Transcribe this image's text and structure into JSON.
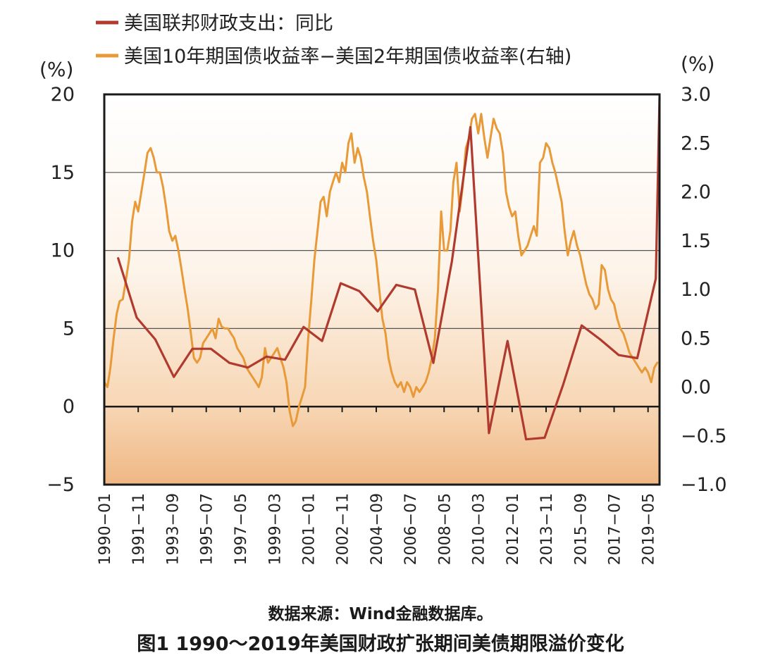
{
  "chart_data": {
    "type": "line",
    "title": "图1 1990～2019年美国财政扩张期间美债期限溢价变化",
    "source": "数据来源：Wind金融数据库。",
    "left_unit": "(%)",
    "right_unit": "(%)",
    "y_left": {
      "min": -5,
      "max": 20,
      "ticks": [
        "20",
        "15",
        "10",
        "5",
        "0",
        "−5"
      ],
      "tick_values": [
        20,
        15,
        10,
        5,
        0,
        -5
      ]
    },
    "y_right": {
      "min": -1.0,
      "max": 3.0,
      "ticks": [
        "3.0",
        "2.5",
        "2.0",
        "1.5",
        "1.0",
        "0.5",
        "0.0",
        "−0.5",
        "−1.0"
      ],
      "tick_values": [
        3.0,
        2.5,
        2.0,
        1.5,
        1.0,
        0.5,
        0.0,
        -0.5,
        -1.0
      ]
    },
    "x_range": [
      1990.0,
      2019.95
    ],
    "x_ticks": [
      "1990−01",
      "1991−11",
      "1993−09",
      "1995−07",
      "1997−05",
      "1999−03",
      "2001−01",
      "2002−11",
      "2004−09",
      "2006−07",
      "2008−05",
      "2010−03",
      "2012−01",
      "2013−11",
      "2015−09",
      "2017−07",
      "2019−05"
    ],
    "x_tick_values": [
      1990.0,
      1991.83,
      1993.67,
      1995.5,
      1997.33,
      1999.17,
      2001.0,
      2002.83,
      2004.67,
      2006.5,
      2008.33,
      2010.17,
      2012.0,
      2013.83,
      2015.67,
      2017.5,
      2019.33
    ],
    "series": [
      {
        "name": "美国联邦财政支出：同比",
        "axis": "left",
        "color": "#b03a2e",
        "points": [
          [
            1990.75,
            9.5
          ],
          [
            1991.75,
            5.7
          ],
          [
            1992.75,
            4.3
          ],
          [
            1993.75,
            1.9
          ],
          [
            1994.75,
            3.7
          ],
          [
            1995.75,
            3.7
          ],
          [
            1996.75,
            2.8
          ],
          [
            1997.75,
            2.5
          ],
          [
            1998.75,
            3.2
          ],
          [
            1999.75,
            3.0
          ],
          [
            2000.75,
            5.1
          ],
          [
            2001.75,
            4.2
          ],
          [
            2002.75,
            7.9
          ],
          [
            2003.75,
            7.4
          ],
          [
            2004.75,
            6.1
          ],
          [
            2005.75,
            7.8
          ],
          [
            2006.75,
            7.5
          ],
          [
            2007.75,
            2.8
          ],
          [
            2008.75,
            9.3
          ],
          [
            2009.75,
            17.9
          ],
          [
            2010.75,
            -1.7
          ],
          [
            2011.75,
            4.2
          ],
          [
            2012.75,
            -2.1
          ],
          [
            2013.75,
            -2.0
          ],
          [
            2014.75,
            1.4
          ],
          [
            2015.75,
            5.2
          ],
          [
            2016.75,
            4.3
          ],
          [
            2017.75,
            3.3
          ],
          [
            2018.75,
            3.1
          ],
          [
            2019.75,
            8.2
          ],
          [
            2019.95,
            19.8
          ]
        ]
      },
      {
        "name": "美国10年期国债收益率−美国2年期国债收益率(右轴)",
        "axis": "right",
        "color": "#e89a38",
        "points": [
          [
            1990.0,
            0.05
          ],
          [
            1990.17,
            0.0
          ],
          [
            1990.33,
            0.2
          ],
          [
            1990.5,
            0.5
          ],
          [
            1990.67,
            0.75
          ],
          [
            1990.83,
            0.88
          ],
          [
            1991.0,
            0.9
          ],
          [
            1991.17,
            1.1
          ],
          [
            1991.33,
            1.3
          ],
          [
            1991.5,
            1.7
          ],
          [
            1991.67,
            1.9
          ],
          [
            1991.83,
            1.8
          ],
          [
            1992.0,
            2.0
          ],
          [
            1992.17,
            2.2
          ],
          [
            1992.33,
            2.4
          ],
          [
            1992.5,
            2.45
          ],
          [
            1992.67,
            2.35
          ],
          [
            1992.83,
            2.2
          ],
          [
            1993.0,
            2.2
          ],
          [
            1993.17,
            2.05
          ],
          [
            1993.33,
            1.85
          ],
          [
            1993.5,
            1.6
          ],
          [
            1993.67,
            1.5
          ],
          [
            1993.83,
            1.55
          ],
          [
            1994.0,
            1.4
          ],
          [
            1994.17,
            1.2
          ],
          [
            1994.33,
            1.0
          ],
          [
            1994.5,
            0.8
          ],
          [
            1994.67,
            0.55
          ],
          [
            1994.83,
            0.3
          ],
          [
            1995.0,
            0.25
          ],
          [
            1995.17,
            0.3
          ],
          [
            1995.33,
            0.45
          ],
          [
            1995.5,
            0.5
          ],
          [
            1995.67,
            0.55
          ],
          [
            1995.83,
            0.6
          ],
          [
            1996.0,
            0.5
          ],
          [
            1996.17,
            0.7
          ],
          [
            1996.33,
            0.62
          ],
          [
            1996.5,
            0.6
          ],
          [
            1996.67,
            0.6
          ],
          [
            1996.83,
            0.55
          ],
          [
            1997.0,
            0.5
          ],
          [
            1997.17,
            0.4
          ],
          [
            1997.33,
            0.35
          ],
          [
            1997.5,
            0.3
          ],
          [
            1997.67,
            0.2
          ],
          [
            1997.83,
            0.15
          ],
          [
            1998.0,
            0.1
          ],
          [
            1998.17,
            0.05
          ],
          [
            1998.33,
            0.0
          ],
          [
            1998.5,
            0.1
          ],
          [
            1998.67,
            0.4
          ],
          [
            1998.83,
            0.25
          ],
          [
            1999.0,
            0.3
          ],
          [
            1999.17,
            0.35
          ],
          [
            1999.33,
            0.4
          ],
          [
            1999.5,
            0.3
          ],
          [
            1999.67,
            0.2
          ],
          [
            1999.83,
            0.05
          ],
          [
            2000.0,
            -0.25
          ],
          [
            2000.17,
            -0.4
          ],
          [
            2000.33,
            -0.35
          ],
          [
            2000.5,
            -0.2
          ],
          [
            2000.67,
            -0.1
          ],
          [
            2000.83,
            0.0
          ],
          [
            2001.0,
            0.5
          ],
          [
            2001.17,
            0.9
          ],
          [
            2001.33,
            1.3
          ],
          [
            2001.5,
            1.6
          ],
          [
            2001.67,
            1.9
          ],
          [
            2001.83,
            1.95
          ],
          [
            2002.0,
            1.75
          ],
          [
            2002.17,
            2.0
          ],
          [
            2002.33,
            2.1
          ],
          [
            2002.5,
            2.2
          ],
          [
            2002.67,
            2.1
          ],
          [
            2002.83,
            2.3
          ],
          [
            2003.0,
            2.2
          ],
          [
            2003.17,
            2.5
          ],
          [
            2003.33,
            2.6
          ],
          [
            2003.5,
            2.3
          ],
          [
            2003.67,
            2.45
          ],
          [
            2003.83,
            2.35
          ],
          [
            2004.0,
            2.15
          ],
          [
            2004.17,
            2.0
          ],
          [
            2004.33,
            1.75
          ],
          [
            2004.5,
            1.5
          ],
          [
            2004.67,
            1.3
          ],
          [
            2004.83,
            1.0
          ],
          [
            2005.0,
            0.7
          ],
          [
            2005.17,
            0.55
          ],
          [
            2005.33,
            0.3
          ],
          [
            2005.5,
            0.15
          ],
          [
            2005.67,
            0.05
          ],
          [
            2005.83,
            0.0
          ],
          [
            2006.0,
            0.05
          ],
          [
            2006.17,
            -0.05
          ],
          [
            2006.33,
            0.05
          ],
          [
            2006.5,
            0.0
          ],
          [
            2006.67,
            -0.1
          ],
          [
            2006.83,
            0.0
          ],
          [
            2007.0,
            -0.05
          ],
          [
            2007.17,
            0.0
          ],
          [
            2007.33,
            0.05
          ],
          [
            2007.5,
            0.15
          ],
          [
            2007.67,
            0.3
          ],
          [
            2007.83,
            0.5
          ],
          [
            2008.0,
            1.0
          ],
          [
            2008.17,
            1.8
          ],
          [
            2008.33,
            1.4
          ],
          [
            2008.5,
            1.4
          ],
          [
            2008.67,
            1.6
          ],
          [
            2008.83,
            2.1
          ],
          [
            2009.0,
            2.3
          ],
          [
            2009.17,
            1.8
          ],
          [
            2009.33,
            2.05
          ],
          [
            2009.5,
            2.45
          ],
          [
            2009.67,
            2.55
          ],
          [
            2009.83,
            2.75
          ],
          [
            2010.0,
            2.8
          ],
          [
            2010.17,
            2.6
          ],
          [
            2010.33,
            2.8
          ],
          [
            2010.5,
            2.55
          ],
          [
            2010.67,
            2.35
          ],
          [
            2010.83,
            2.55
          ],
          [
            2011.0,
            2.75
          ],
          [
            2011.17,
            2.65
          ],
          [
            2011.33,
            2.6
          ],
          [
            2011.5,
            2.4
          ],
          [
            2011.67,
            2.0
          ],
          [
            2011.83,
            1.85
          ],
          [
            2012.0,
            1.75
          ],
          [
            2012.17,
            1.8
          ],
          [
            2012.33,
            1.55
          ],
          [
            2012.5,
            1.35
          ],
          [
            2012.67,
            1.4
          ],
          [
            2012.83,
            1.45
          ],
          [
            2013.0,
            1.55
          ],
          [
            2013.17,
            1.65
          ],
          [
            2013.33,
            1.55
          ],
          [
            2013.5,
            2.3
          ],
          [
            2013.67,
            2.35
          ],
          [
            2013.83,
            2.5
          ],
          [
            2014.0,
            2.45
          ],
          [
            2014.17,
            2.3
          ],
          [
            2014.33,
            2.2
          ],
          [
            2014.5,
            2.05
          ],
          [
            2014.67,
            1.9
          ],
          [
            2014.83,
            1.6
          ],
          [
            2015.0,
            1.35
          ],
          [
            2015.17,
            1.5
          ],
          [
            2015.33,
            1.6
          ],
          [
            2015.5,
            1.45
          ],
          [
            2015.67,
            1.35
          ],
          [
            2015.83,
            1.2
          ],
          [
            2016.0,
            1.05
          ],
          [
            2016.17,
            0.95
          ],
          [
            2016.33,
            0.9
          ],
          [
            2016.5,
            0.8
          ],
          [
            2016.67,
            0.85
          ],
          [
            2016.83,
            1.25
          ],
          [
            2017.0,
            1.2
          ],
          [
            2017.17,
            1.0
          ],
          [
            2017.33,
            0.9
          ],
          [
            2017.5,
            0.85
          ],
          [
            2017.67,
            0.7
          ],
          [
            2017.83,
            0.6
          ],
          [
            2018.0,
            0.55
          ],
          [
            2018.17,
            0.45
          ],
          [
            2018.33,
            0.35
          ],
          [
            2018.5,
            0.3
          ],
          [
            2018.67,
            0.25
          ],
          [
            2018.83,
            0.2
          ],
          [
            2019.0,
            0.15
          ],
          [
            2019.17,
            0.2
          ],
          [
            2019.33,
            0.15
          ],
          [
            2019.5,
            0.05
          ],
          [
            2019.67,
            0.2
          ],
          [
            2019.83,
            0.25
          ]
        ]
      }
    ]
  }
}
